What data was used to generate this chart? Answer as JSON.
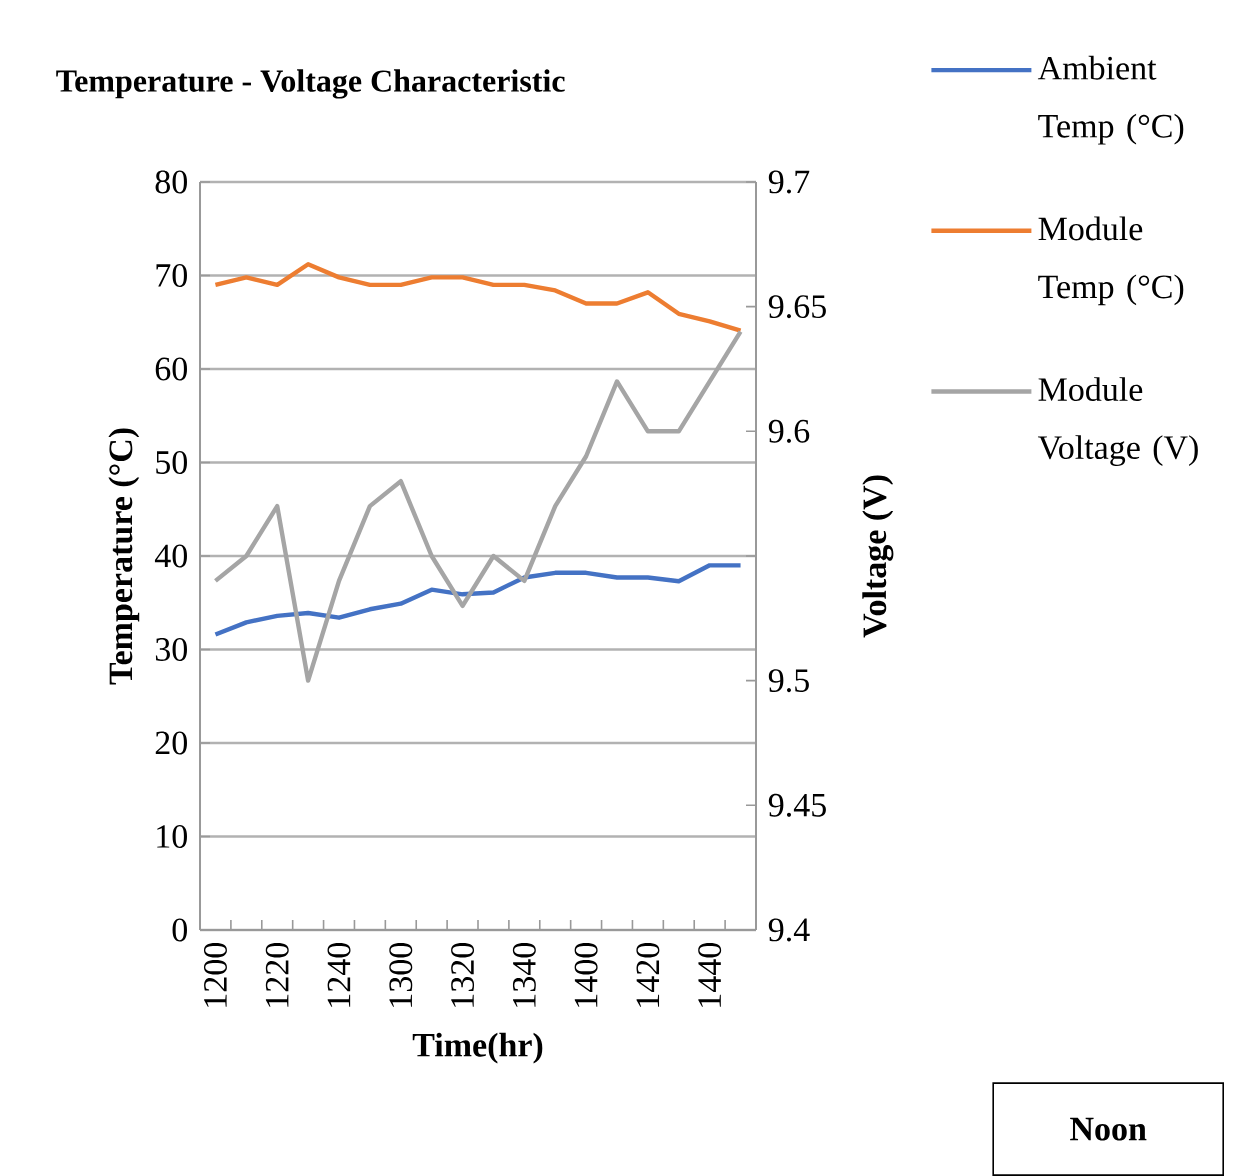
{
  "chart_data": {
    "type": "line",
    "title": "Temperature  - Voltage Characteristic",
    "xlabel": "Time(hr)",
    "ylabel": "Temperature  (°C)",
    "y2label": "Voltage (V)",
    "categories": [
      "1200",
      null,
      "1220",
      null,
      "1240",
      null,
      "1300",
      null,
      "1320",
      null,
      "1340",
      null,
      "1400",
      null,
      "1420",
      null,
      "1440",
      null
    ],
    "series": [
      {
        "name": "Ambient Temp (°C)",
        "color": "#4472c4",
        "values": [
          31.6,
          32.9,
          33.6,
          33.9,
          33.4,
          34.3,
          34.9,
          36.4,
          35.9,
          36.1,
          37.7,
          38.2,
          38.2,
          37.7,
          37.7,
          37.3,
          39,
          39
        ]
      },
      {
        "name": "Module Temp (°C)",
        "color": "#ed7d31",
        "values": [
          69,
          69.8,
          69,
          71.2,
          69.8,
          69,
          69,
          69.8,
          69.8,
          69,
          69,
          68.4,
          67,
          67,
          68.2,
          65.9,
          65.1,
          64.1
        ]
      },
      {
        "name": "Module Voltage (V)",
        "color": "#a5a5a5",
        "axis": "y2",
        "values": [
          9.54,
          9.55,
          9.57,
          9.5,
          9.54,
          9.57,
          9.58,
          9.55,
          9.53,
          9.55,
          9.54,
          9.57,
          9.59,
          9.62,
          9.6,
          9.6,
          9.62,
          9.64
        ]
      }
    ],
    "ylim": [
      0,
      80
    ],
    "yticks": [
      0,
      10,
      20,
      30,
      40,
      50,
      60,
      70,
      80
    ],
    "y2lim": [
      9.4,
      9.7
    ],
    "y2ticks": [
      9.4,
      9.45,
      9.5,
      {
        "value": 9.55,
        "label": null
      },
      9.6,
      9.65,
      9.7
    ],
    "grid": "y",
    "legend": "right",
    "marker": "none",
    "line_style": "solid",
    "annotations": [
      "Noon"
    ]
  }
}
